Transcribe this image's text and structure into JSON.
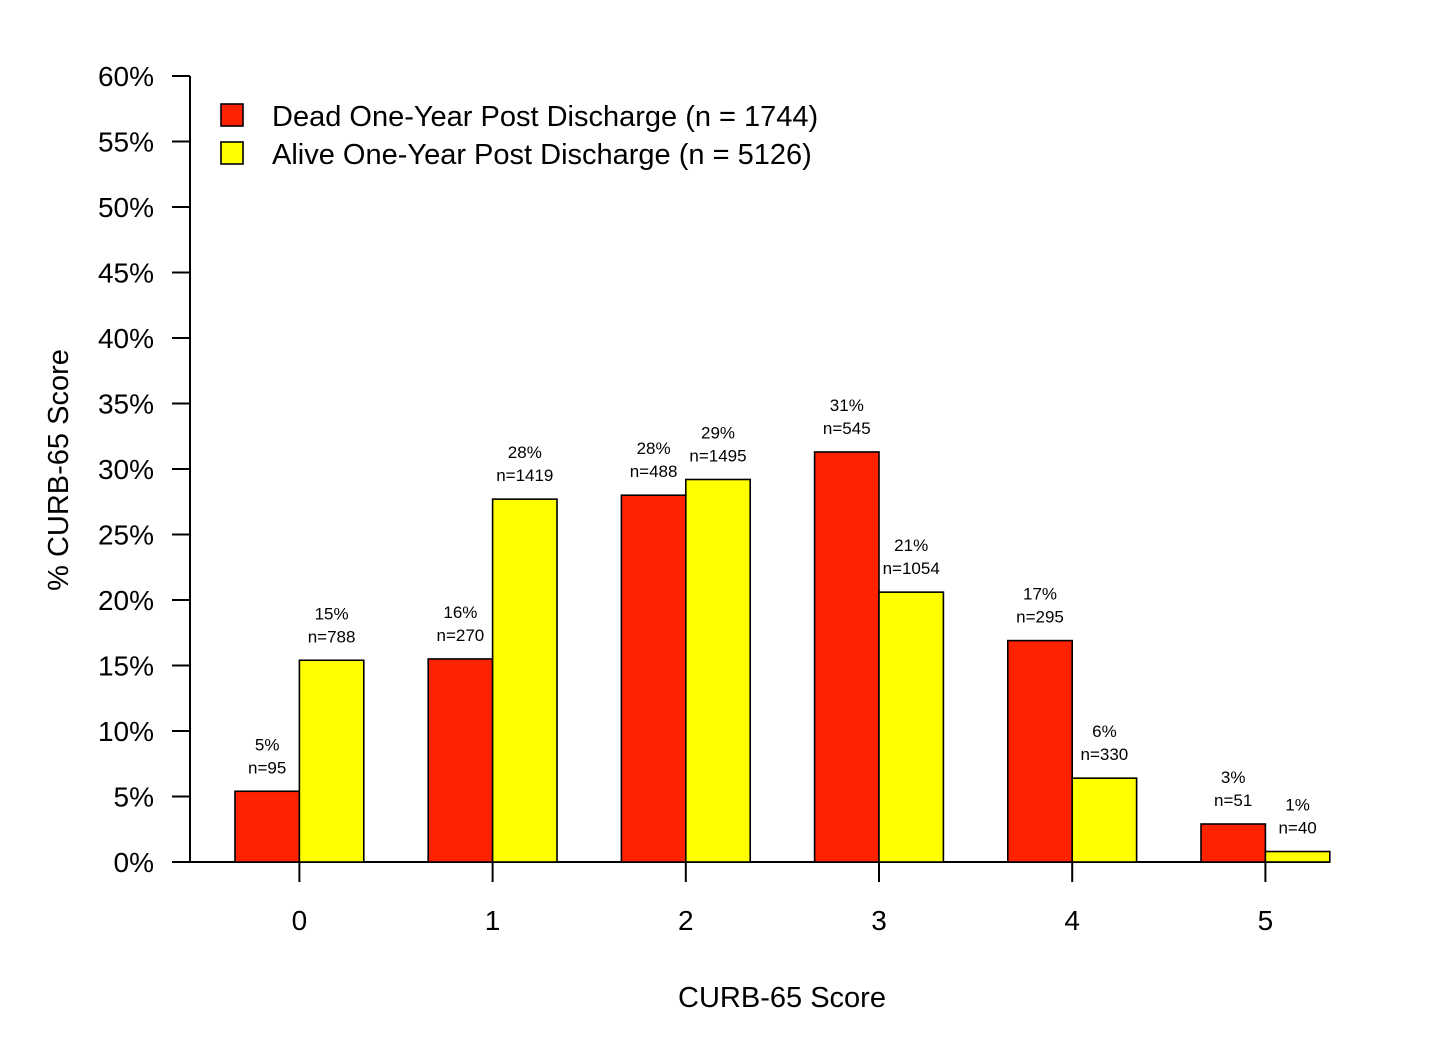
{
  "chart_data": {
    "type": "bar",
    "xlabel": "CURB-65 Score",
    "ylabel": "% CURB-65 Score",
    "categories": [
      "0",
      "1",
      "2",
      "3",
      "4",
      "5"
    ],
    "ylim": [
      0,
      60
    ],
    "yticks": [
      0,
      5,
      10,
      15,
      20,
      25,
      30,
      35,
      40,
      45,
      50,
      55,
      60
    ],
    "ytick_labels": [
      "0%",
      "5%",
      "10%",
      "15%",
      "20%",
      "25%",
      "30%",
      "35%",
      "40%",
      "45%",
      "50%",
      "55%",
      "60%"
    ],
    "legend_position": "top-left",
    "grid": false,
    "series": [
      {
        "name": "Dead One-Year Post Discharge (n = 1744)",
        "color": "#ff2200",
        "values": [
          5.4,
          15.5,
          28.0,
          31.3,
          16.9,
          2.9
        ],
        "pct_labels": [
          "5%",
          "16%",
          "28%",
          "31%",
          "17%",
          "3%"
        ],
        "n_labels": [
          "n=95",
          "n=270",
          "n=488",
          "n=545",
          "n=295",
          "n=51"
        ]
      },
      {
        "name": "Alive One-Year Post Discharge (n = 5126)",
        "color": "#ffff00",
        "values": [
          15.4,
          27.7,
          29.2,
          20.6,
          6.4,
          0.8
        ],
        "pct_labels": [
          "15%",
          "28%",
          "29%",
          "21%",
          "6%",
          "1%"
        ],
        "n_labels": [
          "n=788",
          "n=1419",
          "n=1495",
          "n=1054",
          "n=330",
          "n=40"
        ]
      }
    ]
  }
}
